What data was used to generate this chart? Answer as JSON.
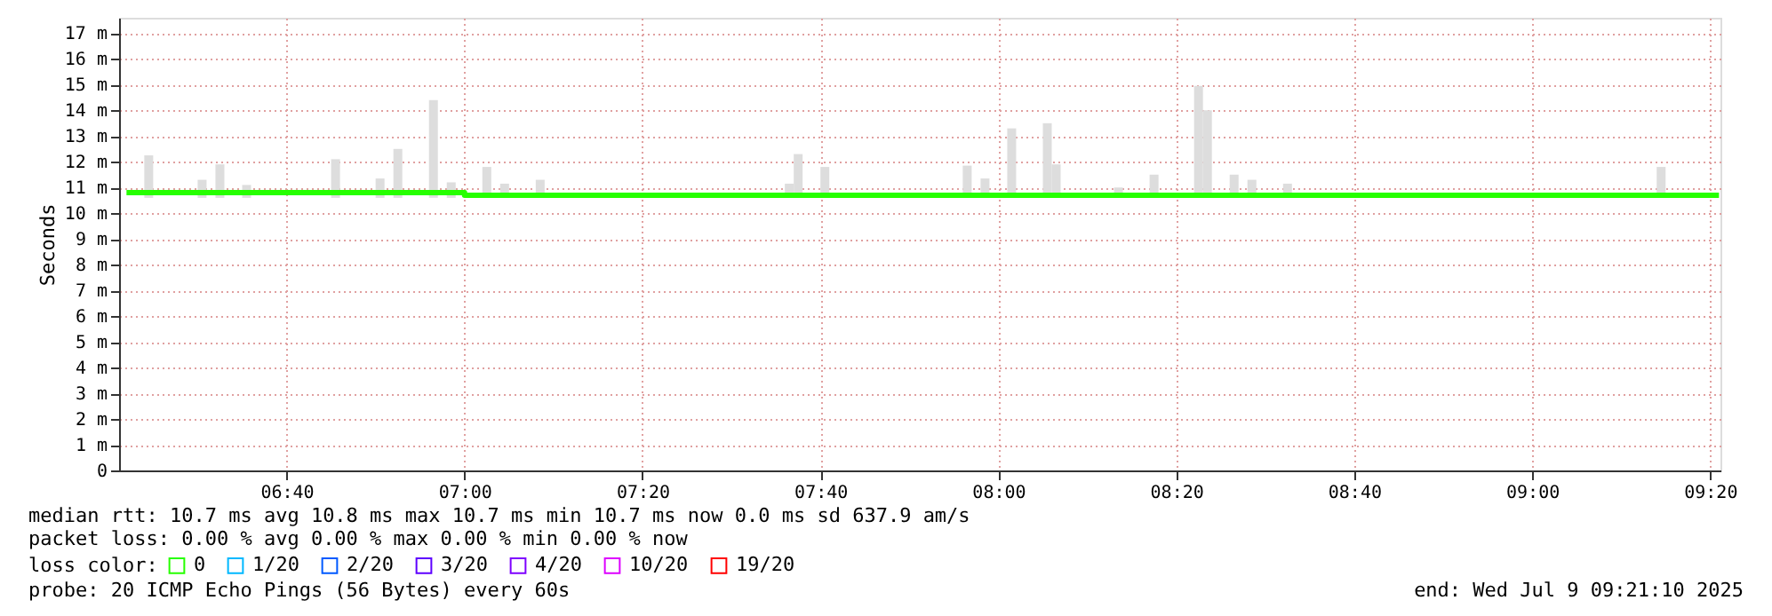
{
  "chart_data": {
    "type": "line",
    "ylabel": "Seconds",
    "xlim": [
      "2025-07-09T06:21:10",
      "2025-07-09T09:21:10"
    ],
    "xticks": [
      {
        "value": "2025-07-09T06:40",
        "label": "06:40"
      },
      {
        "value": "2025-07-09T07:00",
        "label": "07:00"
      },
      {
        "value": "2025-07-09T07:20",
        "label": "07:20"
      },
      {
        "value": "2025-07-09T07:40",
        "label": "07:40"
      },
      {
        "value": "2025-07-09T08:00",
        "label": "08:00"
      },
      {
        "value": "2025-07-09T08:20",
        "label": "08:20"
      },
      {
        "value": "2025-07-09T08:40",
        "label": "08:40"
      },
      {
        "value": "2025-07-09T09:00",
        "label": "09:00"
      },
      {
        "value": "2025-07-09T09:20",
        "label": "09:20"
      }
    ],
    "ylim": [
      0,
      17.6
    ],
    "yticks": [
      0,
      {
        "value": 1,
        "label": "1 m"
      },
      {
        "value": 2,
        "label": "2 m"
      },
      {
        "value": 3,
        "label": "3 m"
      },
      {
        "value": 4,
        "label": "4 m"
      },
      {
        "value": 5,
        "label": "5 m"
      },
      {
        "value": 6,
        "label": "6 m"
      },
      {
        "value": 7,
        "label": "7 m"
      },
      {
        "value": 8,
        "label": "8 m"
      },
      {
        "value": 9,
        "label": "9 m"
      },
      {
        "value": 10,
        "label": "10 m"
      },
      {
        "value": 11,
        "label": "11 m"
      },
      {
        "value": 12,
        "label": "12 m"
      },
      {
        "value": 13,
        "label": "13 m"
      },
      {
        "value": 14,
        "label": "14 m"
      },
      {
        "value": 15,
        "label": "15 m"
      },
      {
        "value": 16,
        "label": "16 m"
      },
      {
        "value": 17,
        "label": "17 m"
      }
    ],
    "grid": true,
    "legend": "bottom",
    "legend_title": "loss color:",
    "series": [
      {
        "type": "bar",
        "color": "#dddddd",
        "x": [
          "2025-07-09T06:24",
          "2025-07-09T06:30",
          "2025-07-09T06:32",
          "2025-07-09T06:35",
          "2025-07-09T06:45",
          "2025-07-09T06:50",
          "2025-07-09T06:52",
          "2025-07-09T06:56",
          "2025-07-09T06:58",
          "2025-07-09T07:02",
          "2025-07-09T07:04",
          "2025-07-09T07:08",
          "2025-07-09T07:36",
          "2025-07-09T07:37",
          "2025-07-09T07:40",
          "2025-07-09T07:56",
          "2025-07-09T07:58",
          "2025-07-09T08:01",
          "2025-07-09T08:05",
          "2025-07-09T08:06",
          "2025-07-09T08:13",
          "2025-07-09T08:17",
          "2025-07-09T08:22",
          "2025-07-09T08:23",
          "2025-07-09T08:26",
          "2025-07-09T08:28",
          "2025-07-09T08:32",
          "2025-07-09T09:14"
        ],
        "base": [
          10.6,
          10.6,
          10.6,
          10.6,
          10.6,
          10.6,
          10.6,
          10.6,
          10.6,
          10.6,
          10.6,
          10.6,
          10.6,
          10.6,
          10.6,
          10.6,
          10.6,
          10.6,
          10.6,
          10.6,
          10.6,
          10.6,
          10.6,
          10.6,
          10.6,
          10.6,
          10.6,
          10.6
        ],
        "values": [
          1.65,
          0.7,
          1.3,
          0.5,
          1.5,
          0.75,
          1.9,
          3.8,
          0.6,
          1.2,
          0.55,
          0.7,
          0.55,
          1.7,
          1.2,
          1.25,
          0.75,
          2.7,
          2.9,
          1.3,
          0.4,
          0.9,
          4.35,
          3.4,
          0.9,
          0.7,
          0.55,
          1.2
        ]
      },
      {
        "name": "0",
        "color": "#26ff00",
        "x": [
          "2025-07-09T06:22",
          "2025-07-09T06:30",
          "2025-07-09T06:40",
          "2025-07-09T06:50",
          "2025-07-09T07:00",
          "2025-07-09T07:10",
          "2025-07-09T07:20",
          "2025-07-09T07:30",
          "2025-07-09T07:40",
          "2025-07-09T07:50",
          "2025-07-09T08:00",
          "2025-07-09T08:10",
          "2025-07-09T08:20",
          "2025-07-09T08:30",
          "2025-07-09T08:40",
          "2025-07-09T08:50",
          "2025-07-09T09:00",
          "2025-07-09T09:10",
          "2025-07-09T09:21"
        ],
        "values": [
          10.8,
          10.8,
          10.8,
          10.8,
          10.7,
          10.7,
          10.7,
          10.7,
          10.7,
          10.7,
          10.7,
          10.7,
          10.7,
          10.7,
          10.7,
          10.7,
          10.7,
          10.7,
          10.7
        ]
      },
      {
        "name": "1/20",
        "color": "#00b8ff"
      },
      {
        "name": "2/20",
        "color": "#0059ff"
      },
      {
        "name": "3/20",
        "color": "#5e00ff"
      },
      {
        "name": "4/20",
        "color": "#7e00ff"
      },
      {
        "name": "10/20",
        "color": "#dd00ff"
      },
      {
        "name": "19/20",
        "color": "#ff0000"
      }
    ],
    "annotations": [
      "median rtt:  10.7 ms avg  10.8 ms max  10.7 ms min  10.7 ms now  0.0 ms sd  637.9   am/s",
      "packet loss: 0.00 % avg  0.00 % max  0.00 % min  0.00 % now",
      "probe:       20 ICMP Echo Pings (56 Bytes) every 60s",
      "end: Wed Jul  9 09:21:10 2025"
    ]
  }
}
